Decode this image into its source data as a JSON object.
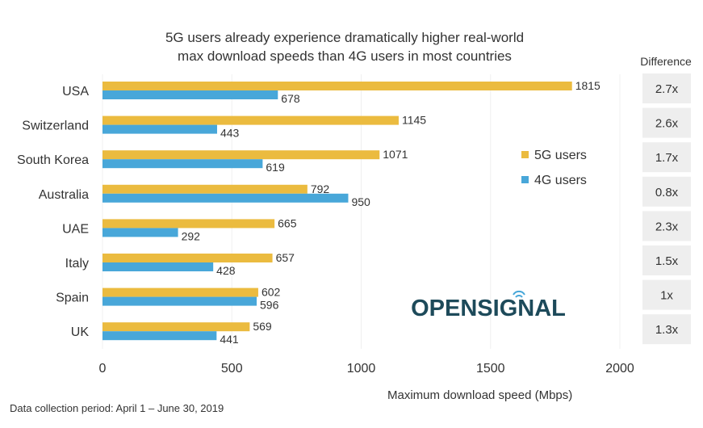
{
  "chart_data": {
    "type": "bar",
    "orientation": "horizontal",
    "title": "5G users already experience dramatically higher real-world max download speeds than 4G users in most countries",
    "title_lines": [
      "5G users already experience dramatically higher real-world",
      "max download speeds than 4G users in most countries"
    ],
    "xlabel": "Maximum download speed (Mbps)",
    "ylabel": "",
    "xlim": [
      0,
      2000
    ],
    "xticks": [
      0,
      500,
      1000,
      1500,
      2000
    ],
    "grid": true,
    "legend_position": "right",
    "categories": [
      "USA",
      "Switzerland",
      "South Korea",
      "Australia",
      "UAE",
      "Italy",
      "Spain",
      "UK"
    ],
    "series": [
      {
        "name": "5G users",
        "color": "#ebbb3f",
        "values": [
          1815,
          1145,
          1071,
          792,
          665,
          657,
          602,
          569
        ]
      },
      {
        "name": "4G users",
        "color": "#48a7d9",
        "values": [
          678,
          443,
          619,
          950,
          292,
          428,
          596,
          441
        ]
      }
    ],
    "difference_header": "Difference",
    "difference": [
      "2.7x",
      "2.6x",
      "1.7x",
      "0.8x",
      "2.3x",
      "1.5x",
      "1x",
      "1.3x"
    ],
    "footnote": "Data collection period: April 1 – June 30, 2019",
    "logo": "OPENSIGNAL"
  }
}
